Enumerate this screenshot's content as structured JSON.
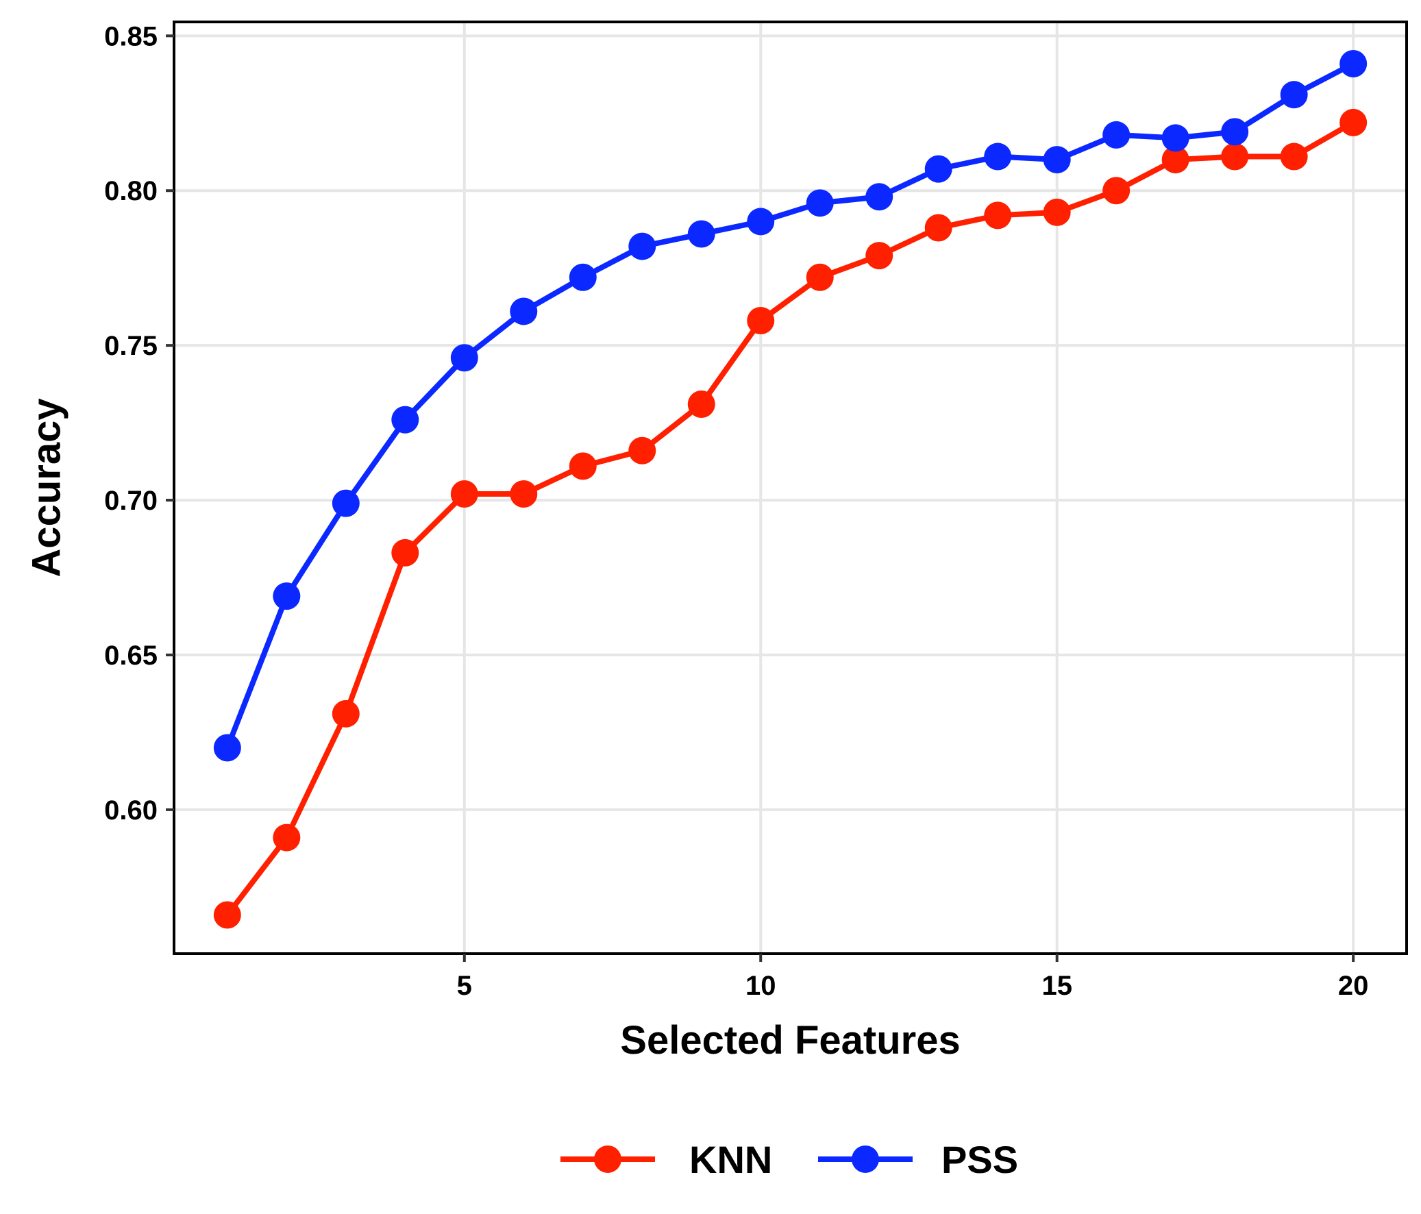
{
  "chart_data": {
    "type": "line",
    "xlabel": "Selected Features",
    "ylabel": "Accuracy",
    "xlim": [
      0.1,
      20.9
    ],
    "ylim": [
      0.5535,
      0.8545
    ],
    "x_ticks": [
      5,
      10,
      15,
      20
    ],
    "x_tick_labels": [
      "5",
      "10",
      "15",
      "20"
    ],
    "y_ticks": [
      0.6,
      0.65,
      0.7,
      0.75,
      0.8,
      0.85
    ],
    "y_tick_labels": [
      "0.60",
      "0.65",
      "0.70",
      "0.75",
      "0.80",
      "0.85"
    ],
    "grid": true,
    "legend_position": "bottom",
    "x": [
      1,
      2,
      3,
      4,
      5,
      6,
      7,
      8,
      9,
      10,
      11,
      12,
      13,
      14,
      15,
      16,
      17,
      18,
      19,
      20
    ],
    "series": [
      {
        "name": "KNN",
        "color": "#ff2000",
        "values": [
          0.566,
          0.591,
          0.631,
          0.683,
          0.702,
          0.702,
          0.711,
          0.716,
          0.731,
          0.758,
          0.772,
          0.779,
          0.788,
          0.792,
          0.793,
          0.8,
          0.81,
          0.811,
          0.811,
          0.822
        ]
      },
      {
        "name": "PSS",
        "color": "#0a28ff",
        "values": [
          0.62,
          0.669,
          0.699,
          0.726,
          0.746,
          0.761,
          0.772,
          0.782,
          0.786,
          0.79,
          0.796,
          0.798,
          0.807,
          0.811,
          0.81,
          0.818,
          0.817,
          0.819,
          0.831,
          0.841
        ]
      }
    ]
  }
}
